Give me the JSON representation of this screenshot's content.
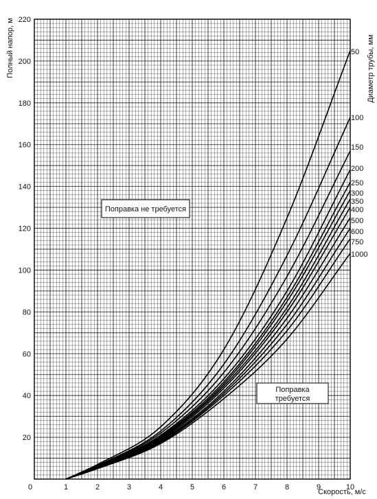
{
  "chart_data": {
    "type": "line",
    "title": "",
    "xlabel": "Скорость, м/с",
    "ylabel": "Полный напор, м",
    "right_label": "Диаметр трубы, мм",
    "xlim": [
      0,
      10
    ],
    "ylim": [
      0,
      220
    ],
    "x_ticks": [
      0,
      1,
      2,
      3,
      4,
      5,
      6,
      7,
      8,
      9,
      10
    ],
    "y_ticks": [
      20,
      40,
      60,
      80,
      100,
      120,
      140,
      160,
      180,
      200,
      220
    ],
    "grid": true,
    "series": [
      {
        "name": "50",
        "x": [
          1,
          2,
          4,
          6,
          8,
          10
        ],
        "y": [
          0,
          7,
          25,
          62,
          125,
          205
        ]
      },
      {
        "name": "100",
        "x": [
          1,
          2,
          4,
          6,
          8,
          10
        ],
        "y": [
          0,
          6.5,
          23,
          55,
          107,
          173
        ]
      },
      {
        "name": "150",
        "x": [
          1,
          2,
          4,
          6,
          8,
          10
        ],
        "y": [
          0,
          6.2,
          22,
          51,
          97,
          157
        ]
      },
      {
        "name": "200",
        "x": [
          1,
          2,
          4,
          6,
          8,
          10
        ],
        "y": [
          0,
          6,
          21,
          48,
          90,
          148
        ]
      },
      {
        "name": "250",
        "x": [
          1,
          2,
          4,
          6,
          8,
          10
        ],
        "y": [
          0,
          5.8,
          20.5,
          46.5,
          87,
          142
        ]
      },
      {
        "name": "300",
        "x": [
          1,
          2,
          4,
          6,
          8,
          10
        ],
        "y": [
          0,
          5.6,
          20,
          45.5,
          85,
          138
        ]
      },
      {
        "name": "350",
        "x": [
          1,
          2,
          4,
          6,
          8,
          10
        ],
        "y": [
          0,
          5.5,
          19.5,
          44.5,
          82,
          134
        ]
      },
      {
        "name": "400",
        "x": [
          1,
          2,
          4,
          6,
          8,
          10
        ],
        "y": [
          0,
          5.4,
          19,
          43.5,
          80,
          130
        ]
      },
      {
        "name": "500",
        "x": [
          1,
          2,
          4,
          6,
          8,
          10
        ],
        "y": [
          0,
          5.3,
          18.5,
          42,
          77,
          125
        ]
      },
      {
        "name": "600",
        "x": [
          1,
          2,
          4,
          6,
          8,
          10
        ],
        "y": [
          0,
          5.2,
          18,
          41,
          74,
          120
        ]
      },
      {
        "name": "750",
        "x": [
          1,
          2,
          4,
          6,
          8,
          10
        ],
        "y": [
          0,
          5.1,
          17.5,
          40,
          71,
          115
        ]
      },
      {
        "name": "1000",
        "x": [
          1,
          2,
          4,
          6,
          8,
          10
        ],
        "y": [
          0,
          5,
          17,
          38.5,
          67,
          108
        ]
      }
    ],
    "annotations": [
      {
        "text": "Поправка не требуется"
      },
      {
        "text": "Поправка\nтребуется"
      }
    ]
  }
}
